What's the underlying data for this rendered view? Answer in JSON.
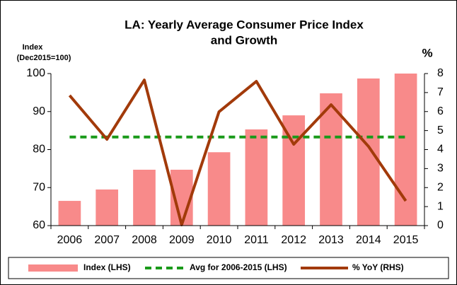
{
  "chart_data": {
    "type": "bar",
    "title": [
      "LA: Yearly Average Consumer Price Index",
      "and Growth"
    ],
    "ylabel": [
      "Index",
      "(Dec2015=100)"
    ],
    "y2label": "%",
    "categories": [
      "2006",
      "2007",
      "2008",
      "2009",
      "2010",
      "2011",
      "2012",
      "2013",
      "2014",
      "2015"
    ],
    "series": [
      {
        "name": "Index (LHS)",
        "type": "bar",
        "color": "#f88a8a",
        "values": [
          66.5,
          69.5,
          74.7,
          74.7,
          79.3,
          85.3,
          89.0,
          94.8,
          98.7,
          100
        ]
      },
      {
        "name": "Avg for 2006-2015 (LHS)",
        "type": "dashed-line",
        "color": "#1a9a1a",
        "values": [
          83.3,
          83.3,
          83.3,
          83.3,
          83.3,
          83.3,
          83.3,
          83.3,
          83.3,
          83.3
        ]
      },
      {
        "name": "% YoY (RHS)",
        "type": "line",
        "axis": "y2",
        "color": "#a23a0a",
        "values": [
          6.85,
          4.54,
          7.66,
          0.04,
          5.99,
          7.59,
          4.28,
          6.36,
          4.17,
          1.3
        ]
      }
    ],
    "ylim": [
      60,
      100
    ],
    "yticks": [
      60,
      70,
      80,
      90,
      100
    ],
    "y2lim": [
      0,
      8
    ],
    "y2ticks": [
      0,
      1,
      2,
      3,
      4,
      5,
      6,
      7,
      8
    ],
    "grid": false
  }
}
